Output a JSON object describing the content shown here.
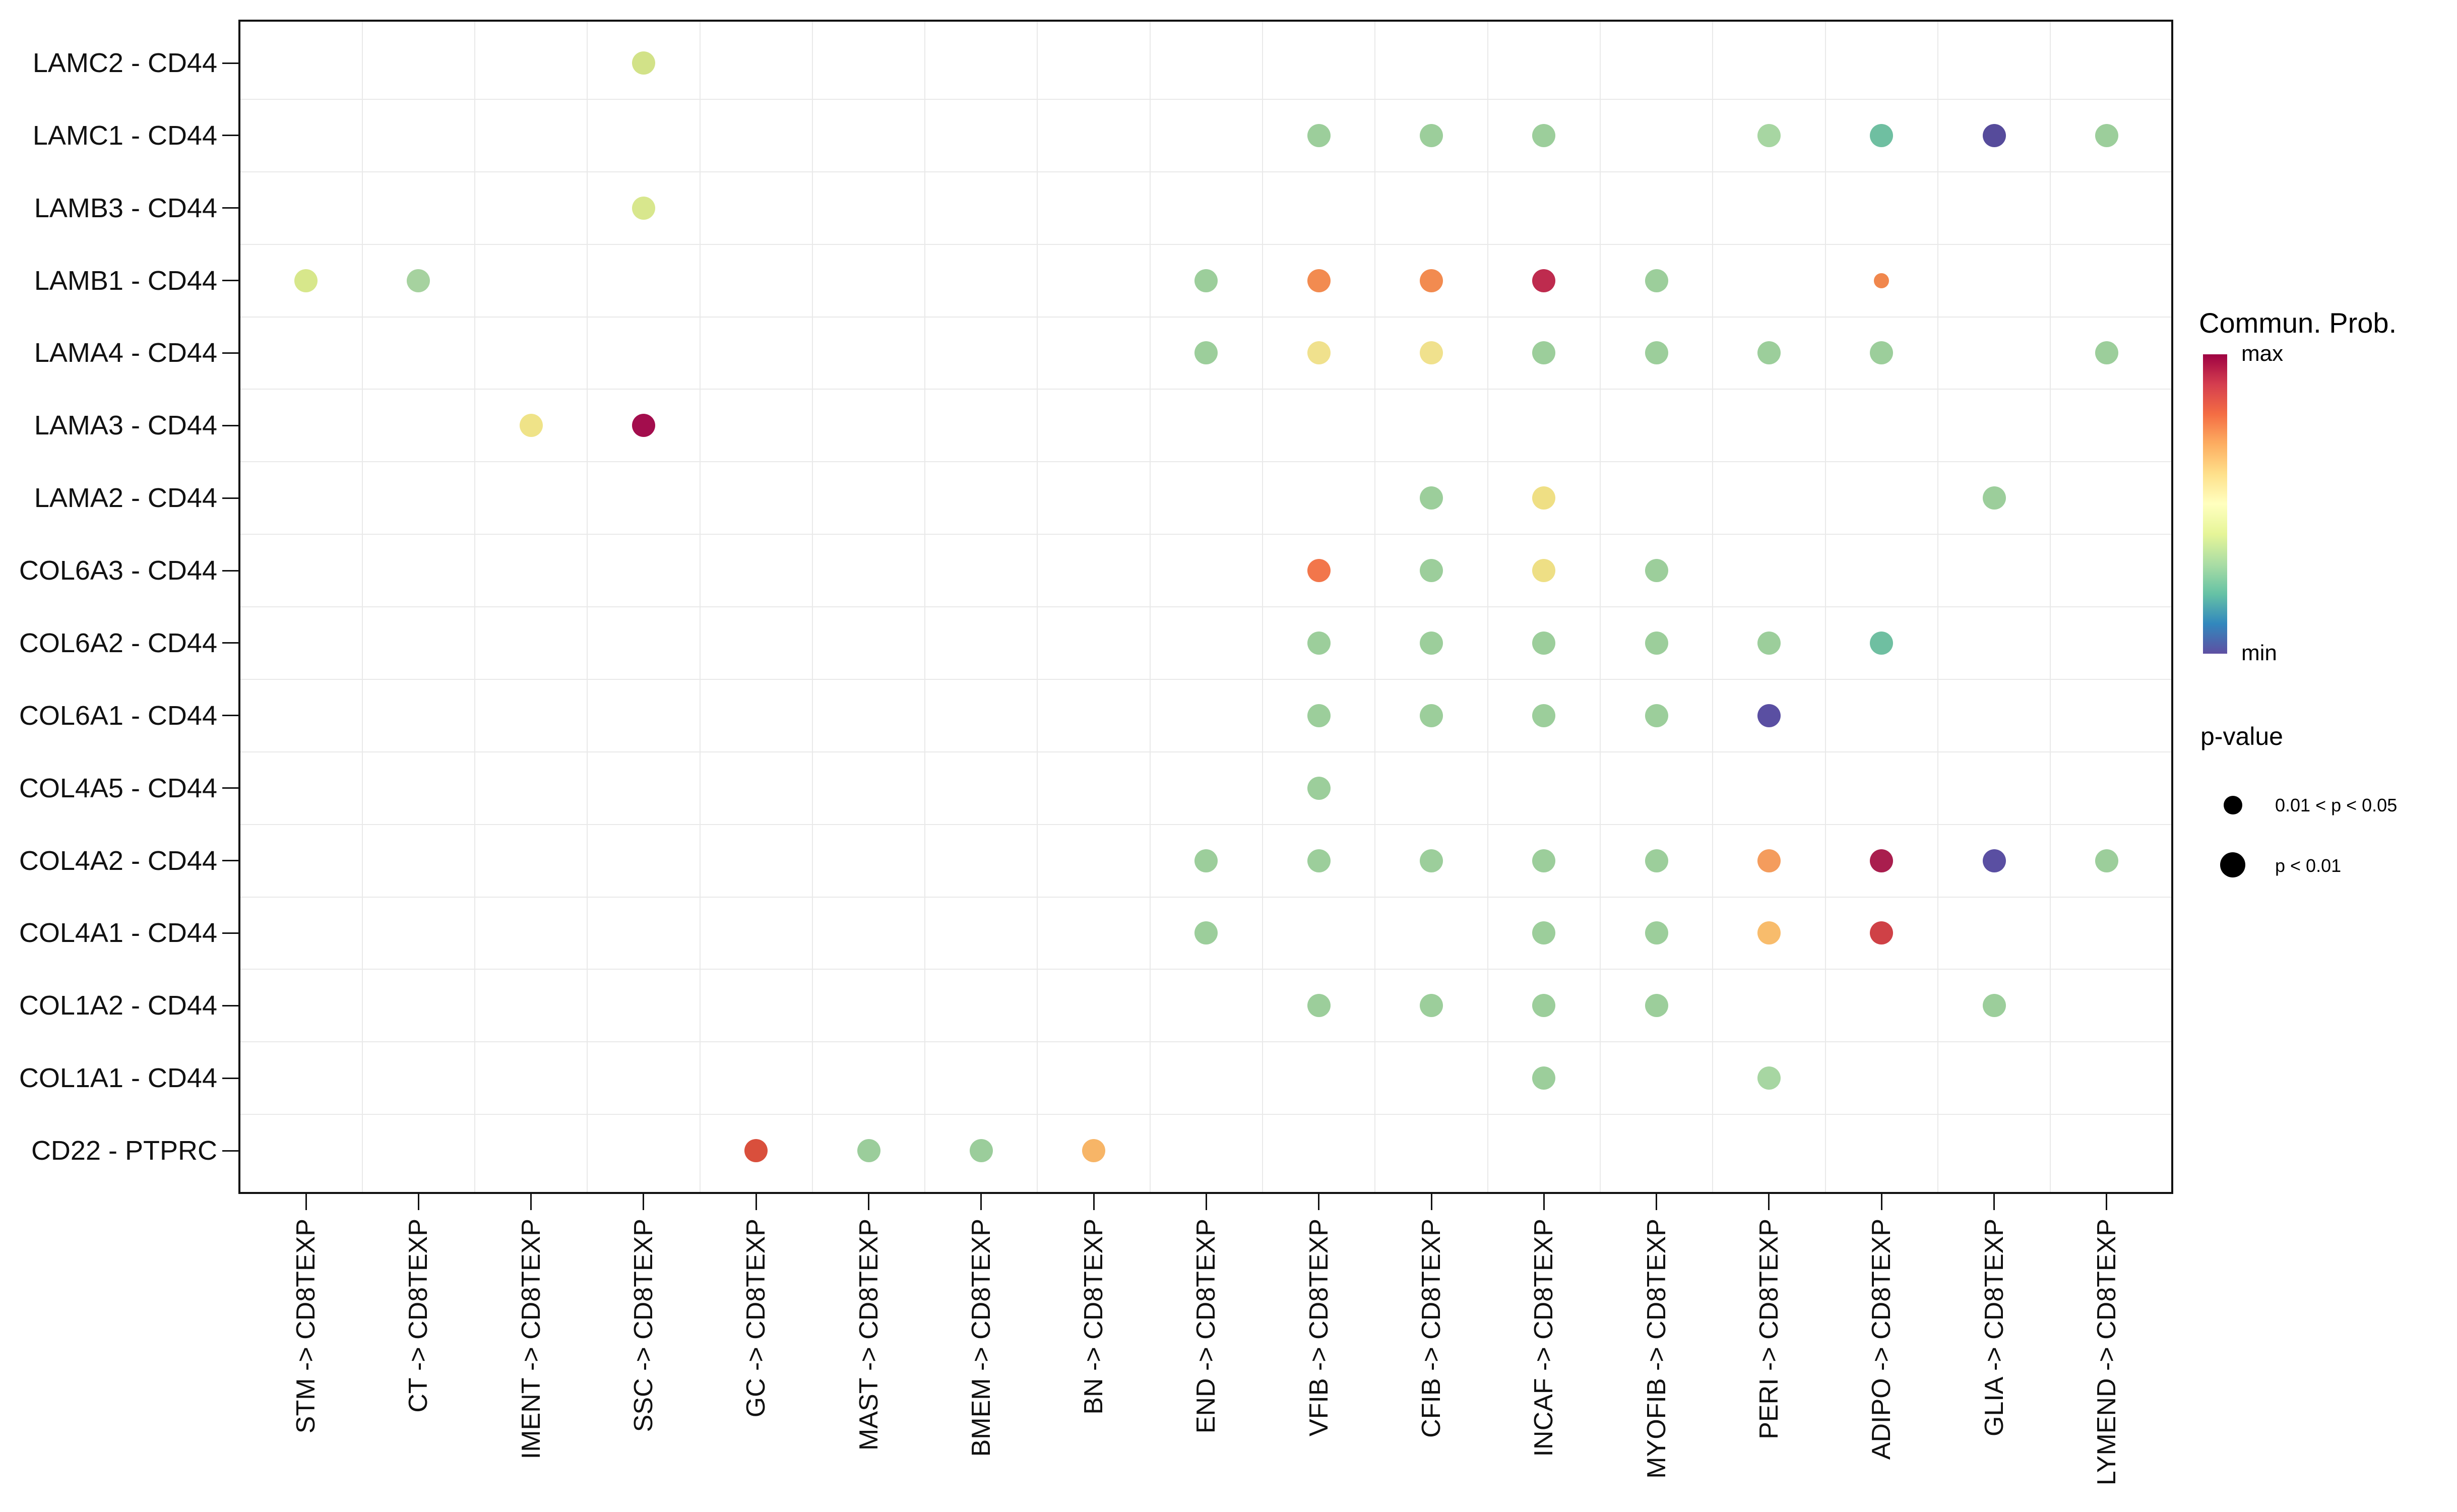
{
  "chart_data": {
    "type": "dotplot",
    "x_categories": [
      "STM -> CD8TEXP",
      "CT -> CD8TEXP",
      "IMENT -> CD8TEXP",
      "SSC -> CD8TEXP",
      "GC -> CD8TEXP",
      "MAST -> CD8TEXP",
      "BMEM -> CD8TEXP",
      "BN -> CD8TEXP",
      "END -> CD8TEXP",
      "VFIB -> CD8TEXP",
      "CFIB -> CD8TEXP",
      "INCAF -> CD8TEXP",
      "MYOFIB -> CD8TEXP",
      "PERI -> CD8TEXP",
      "ADIPO -> CD8TEXP",
      "GLIA -> CD8TEXP",
      "LYMEND -> CD8TEXP"
    ],
    "y_categories": [
      "LAMC2 - CD44",
      "LAMC1 - CD44",
      "LAMB3 - CD44",
      "LAMB1 - CD44",
      "LAMA4 - CD44",
      "LAMA3 - CD44",
      "LAMA2 - CD44",
      "COL6A3 - CD44",
      "COL6A2 - CD44",
      "COL6A1 - CD44",
      "COL4A5 - CD44",
      "COL4A2 - CD44",
      "COL4A1 - CD44",
      "COL1A2 - CD44",
      "COL1A1 - CD44",
      "CD22 - PTPRC"
    ],
    "points": [
      {
        "y": "LAMC2 - CD44",
        "x": "SSC -> CD8TEXP",
        "color": "#D2E288",
        "p": "p < 0.01"
      },
      {
        "y": "LAMC1 - CD44",
        "x": "VFIB -> CD8TEXP",
        "color": "#9CCE9B",
        "p": "p < 0.01"
      },
      {
        "y": "LAMC1 - CD44",
        "x": "CFIB -> CD8TEXP",
        "color": "#9CCE9B",
        "p": "p < 0.01"
      },
      {
        "y": "LAMC1 - CD44",
        "x": "INCAF -> CD8TEXP",
        "color": "#9CCE9B",
        "p": "p < 0.01"
      },
      {
        "y": "LAMC1 - CD44",
        "x": "PERI -> CD8TEXP",
        "color": "#A7D6A2",
        "p": "p < 0.01"
      },
      {
        "y": "LAMC1 - CD44",
        "x": "ADIPO -> CD8TEXP",
        "color": "#6FBFA1",
        "p": "p < 0.01"
      },
      {
        "y": "LAMC1 - CD44",
        "x": "GLIA -> CD8TEXP",
        "color": "#564B9B",
        "p": "p < 0.01"
      },
      {
        "y": "LAMC1 - CD44",
        "x": "LYMEND -> CD8TEXP",
        "color": "#9CCE9B",
        "p": "p < 0.01"
      },
      {
        "y": "LAMB3 - CD44",
        "x": "SSC -> CD8TEXP",
        "color": "#D8E78D",
        "p": "p < 0.01"
      },
      {
        "y": "LAMB1 - CD44",
        "x": "STM -> CD8TEXP",
        "color": "#D7E78B",
        "p": "p < 0.01"
      },
      {
        "y": "LAMB1 - CD44",
        "x": "CT -> CD8TEXP",
        "color": "#A6D29F",
        "p": "p < 0.01"
      },
      {
        "y": "LAMB1 - CD44",
        "x": "END -> CD8TEXP",
        "color": "#9CCE9B",
        "p": "p < 0.01"
      },
      {
        "y": "LAMB1 - CD44",
        "x": "VFIB -> CD8TEXP",
        "color": "#F28B50",
        "p": "p < 0.01"
      },
      {
        "y": "LAMB1 - CD44",
        "x": "CFIB -> CD8TEXP",
        "color": "#F28B50",
        "p": "p < 0.01"
      },
      {
        "y": "LAMB1 - CD44",
        "x": "INCAF -> CD8TEXP",
        "color": "#BE2B4E",
        "p": "p < 0.01"
      },
      {
        "y": "LAMB1 - CD44",
        "x": "MYOFIB -> CD8TEXP",
        "color": "#9CCE9B",
        "p": "p < 0.01"
      },
      {
        "y": "LAMB1 - CD44",
        "x": "ADIPO -> CD8TEXP",
        "color": "#F0874D",
        "p": "0.01 < p < 0.05"
      },
      {
        "y": "LAMA4 - CD44",
        "x": "END -> CD8TEXP",
        "color": "#9CCE9B",
        "p": "p < 0.01"
      },
      {
        "y": "LAMA4 - CD44",
        "x": "VFIB -> CD8TEXP",
        "color": "#F0E18D",
        "p": "p < 0.01"
      },
      {
        "y": "LAMA4 - CD44",
        "x": "CFIB -> CD8TEXP",
        "color": "#F0E18D",
        "p": "p < 0.01"
      },
      {
        "y": "LAMA4 - CD44",
        "x": "INCAF -> CD8TEXP",
        "color": "#9CCE9B",
        "p": "p < 0.01"
      },
      {
        "y": "LAMA4 - CD44",
        "x": "MYOFIB -> CD8TEXP",
        "color": "#9CCE9B",
        "p": "p < 0.01"
      },
      {
        "y": "LAMA4 - CD44",
        "x": "PERI -> CD8TEXP",
        "color": "#9CCE9B",
        "p": "p < 0.01"
      },
      {
        "y": "LAMA4 - CD44",
        "x": "ADIPO -> CD8TEXP",
        "color": "#9CCE9B",
        "p": "p < 0.01"
      },
      {
        "y": "LAMA4 - CD44",
        "x": "LYMEND -> CD8TEXP",
        "color": "#9CCE9B",
        "p": "p < 0.01"
      },
      {
        "y": "LAMA3 - CD44",
        "x": "IMENT -> CD8TEXP",
        "color": "#EFE388",
        "p": "p < 0.01"
      },
      {
        "y": "LAMA3 - CD44",
        "x": "SSC -> CD8TEXP",
        "color": "#A30D4D",
        "p": "p < 0.01"
      },
      {
        "y": "LAMA2 - CD44",
        "x": "CFIB -> CD8TEXP",
        "color": "#9CCE9B",
        "p": "p < 0.01"
      },
      {
        "y": "LAMA2 - CD44",
        "x": "INCAF -> CD8TEXP",
        "color": "#EFDF84",
        "p": "p < 0.01"
      },
      {
        "y": "LAMA2 - CD44",
        "x": "GLIA -> CD8TEXP",
        "color": "#9CCE9B",
        "p": "p < 0.01"
      },
      {
        "y": "COL6A3 - CD44",
        "x": "VFIB -> CD8TEXP",
        "color": "#F2764B",
        "p": "p < 0.01"
      },
      {
        "y": "COL6A3 - CD44",
        "x": "CFIB -> CD8TEXP",
        "color": "#9CCE9B",
        "p": "p < 0.01"
      },
      {
        "y": "COL6A3 - CD44",
        "x": "INCAF -> CD8TEXP",
        "color": "#EEDF85",
        "p": "p < 0.01"
      },
      {
        "y": "COL6A3 - CD44",
        "x": "MYOFIB -> CD8TEXP",
        "color": "#9CCE9B",
        "p": "p < 0.01"
      },
      {
        "y": "COL6A2 - CD44",
        "x": "VFIB -> CD8TEXP",
        "color": "#9CCE9B",
        "p": "p < 0.01"
      },
      {
        "y": "COL6A2 - CD44",
        "x": "CFIB -> CD8TEXP",
        "color": "#9CCE9B",
        "p": "p < 0.01"
      },
      {
        "y": "COL6A2 - CD44",
        "x": "INCAF -> CD8TEXP",
        "color": "#9CCE9B",
        "p": "p < 0.01"
      },
      {
        "y": "COL6A2 - CD44",
        "x": "MYOFIB -> CD8TEXP",
        "color": "#9CCE9B",
        "p": "p < 0.01"
      },
      {
        "y": "COL6A2 - CD44",
        "x": "PERI -> CD8TEXP",
        "color": "#9CCE9B",
        "p": "p < 0.01"
      },
      {
        "y": "COL6A2 - CD44",
        "x": "ADIPO -> CD8TEXP",
        "color": "#6FBFA1",
        "p": "p < 0.01"
      },
      {
        "y": "COL6A1 - CD44",
        "x": "VFIB -> CD8TEXP",
        "color": "#9CCE9B",
        "p": "p < 0.01"
      },
      {
        "y": "COL6A1 - CD44",
        "x": "CFIB -> CD8TEXP",
        "color": "#9CCE9B",
        "p": "p < 0.01"
      },
      {
        "y": "COL6A1 - CD44",
        "x": "INCAF -> CD8TEXP",
        "color": "#9CCE9B",
        "p": "p < 0.01"
      },
      {
        "y": "COL6A1 - CD44",
        "x": "MYOFIB -> CD8TEXP",
        "color": "#9CCE9B",
        "p": "p < 0.01"
      },
      {
        "y": "COL6A1 - CD44",
        "x": "PERI -> CD8TEXP",
        "color": "#5A4FA2",
        "p": "p < 0.01"
      },
      {
        "y": "COL4A5 - CD44",
        "x": "VFIB -> CD8TEXP",
        "color": "#9CCE9B",
        "p": "p < 0.01"
      },
      {
        "y": "COL4A2 - CD44",
        "x": "END -> CD8TEXP",
        "color": "#9CCE9B",
        "p": "p < 0.01"
      },
      {
        "y": "COL4A2 - CD44",
        "x": "VFIB -> CD8TEXP",
        "color": "#9CCE9B",
        "p": "p < 0.01"
      },
      {
        "y": "COL4A2 - CD44",
        "x": "CFIB -> CD8TEXP",
        "color": "#9CCE9B",
        "p": "p < 0.01"
      },
      {
        "y": "COL4A2 - CD44",
        "x": "INCAF -> CD8TEXP",
        "color": "#9CCE9B",
        "p": "p < 0.01"
      },
      {
        "y": "COL4A2 - CD44",
        "x": "MYOFIB -> CD8TEXP",
        "color": "#9CCE9B",
        "p": "p < 0.01"
      },
      {
        "y": "COL4A2 - CD44",
        "x": "PERI -> CD8TEXP",
        "color": "#F49C5D",
        "p": "p < 0.01"
      },
      {
        "y": "COL4A2 - CD44",
        "x": "ADIPO -> CD8TEXP",
        "color": "#A91E4E",
        "p": "p < 0.01"
      },
      {
        "y": "COL4A2 - CD44",
        "x": "GLIA -> CD8TEXP",
        "color": "#5A4FA2",
        "p": "p < 0.01"
      },
      {
        "y": "COL4A2 - CD44",
        "x": "LYMEND -> CD8TEXP",
        "color": "#9CCE9B",
        "p": "p < 0.01"
      },
      {
        "y": "COL4A1 - CD44",
        "x": "END -> CD8TEXP",
        "color": "#9CCE9B",
        "p": "p < 0.01"
      },
      {
        "y": "COL4A1 - CD44",
        "x": "INCAF -> CD8TEXP",
        "color": "#9CCE9B",
        "p": "p < 0.01"
      },
      {
        "y": "COL4A1 - CD44",
        "x": "MYOFIB -> CD8TEXP",
        "color": "#9CCE9B",
        "p": "p < 0.01"
      },
      {
        "y": "COL4A1 - CD44",
        "x": "PERI -> CD8TEXP",
        "color": "#F8BC6C",
        "p": "p < 0.01"
      },
      {
        "y": "COL4A1 - CD44",
        "x": "ADIPO -> CD8TEXP",
        "color": "#CF4146",
        "p": "p < 0.01"
      },
      {
        "y": "COL1A2 - CD44",
        "x": "VFIB -> CD8TEXP",
        "color": "#9CCE9B",
        "p": "p < 0.01"
      },
      {
        "y": "COL1A2 - CD44",
        "x": "CFIB -> CD8TEXP",
        "color": "#9CCE9B",
        "p": "p < 0.01"
      },
      {
        "y": "COL1A2 - CD44",
        "x": "INCAF -> CD8TEXP",
        "color": "#9CCE9B",
        "p": "p < 0.01"
      },
      {
        "y": "COL1A2 - CD44",
        "x": "MYOFIB -> CD8TEXP",
        "color": "#9CCE9B",
        "p": "p < 0.01"
      },
      {
        "y": "COL1A2 - CD44",
        "x": "GLIA -> CD8TEXP",
        "color": "#9CCE9B",
        "p": "p < 0.01"
      },
      {
        "y": "COL1A1 - CD44",
        "x": "INCAF -> CD8TEXP",
        "color": "#9CCE9B",
        "p": "p < 0.01"
      },
      {
        "y": "COL1A1 - CD44",
        "x": "PERI -> CD8TEXP",
        "color": "#A7D6A2",
        "p": "p < 0.01"
      },
      {
        "y": "CD22 - PTPRC",
        "x": "GC -> CD8TEXP",
        "color": "#D94F3C",
        "p": "p < 0.01"
      },
      {
        "y": "CD22 - PTPRC",
        "x": "MAST -> CD8TEXP",
        "color": "#9BCD9B",
        "p": "p < 0.01"
      },
      {
        "y": "CD22 - PTPRC",
        "x": "BMEM -> CD8TEXP",
        "color": "#9BCD9B",
        "p": "p < 0.01"
      },
      {
        "y": "CD22 - PTPRC",
        "x": "BN -> CD8TEXP",
        "color": "#F7B567",
        "p": "p < 0.01"
      }
    ],
    "color_legend": {
      "title": "Commun. Prob.",
      "max_label": "max",
      "min_label": "min",
      "gradient_top_to_bottom": [
        "#9E0142",
        "#D53E4F",
        "#F46D43",
        "#FDAE61",
        "#FEE08B",
        "#FFFFBF",
        "#E6F598",
        "#ABDDA4",
        "#66C2A5",
        "#3288BD",
        "#5E4FA2"
      ]
    },
    "size_legend": {
      "title": "p-value",
      "items": [
        {
          "label": "0.01 < p < 0.05",
          "size": "small"
        },
        {
          "label": "p < 0.01",
          "size": "large"
        }
      ]
    },
    "layout_hints": {
      "grid": true,
      "legend_position": "right",
      "x_labels_rotated_degrees": 90
    }
  }
}
